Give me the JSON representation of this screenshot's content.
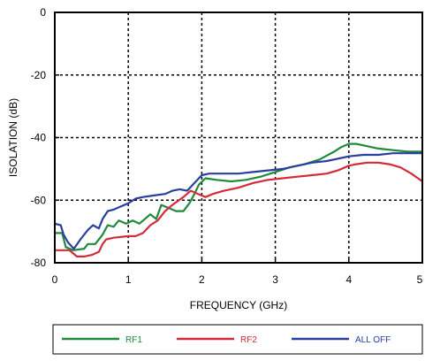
{
  "chart_data": {
    "type": "line",
    "title": "",
    "xlabel": "FREQUENCY (GHz)",
    "ylabel": "ISOLATION (dB)",
    "xlim": [
      0,
      5
    ],
    "ylim": [
      -80,
      0
    ],
    "x_ticks": [
      0,
      1,
      2,
      3,
      4,
      5
    ],
    "x_tick_labels": [
      "0",
      "1",
      "2",
      "3",
      "4",
      "5"
    ],
    "y_ticks": [
      0,
      -20,
      -40,
      -60,
      -80
    ],
    "y_tick_labels": [
      "0",
      "-20",
      "-40",
      "-60",
      "-80"
    ],
    "grid": "dashed",
    "legend_position": "bottom",
    "series": [
      {
        "name": "RF1",
        "color": "#1f8a3a",
        "points": [
          [
            0,
            -70.5
          ],
          [
            0.1,
            -70.5
          ],
          [
            0.15,
            -75
          ],
          [
            0.25,
            -76
          ],
          [
            0.4,
            -75.5
          ],
          [
            0.45,
            -74
          ],
          [
            0.55,
            -74
          ],
          [
            0.65,
            -71
          ],
          [
            0.72,
            -68
          ],
          [
            0.8,
            -68.5
          ],
          [
            0.87,
            -66.5
          ],
          [
            0.97,
            -67.5
          ],
          [
            1.06,
            -66.5
          ],
          [
            1.15,
            -67.5
          ],
          [
            1.3,
            -64.5
          ],
          [
            1.38,
            -66
          ],
          [
            1.45,
            -61.5
          ],
          [
            1.55,
            -62.5
          ],
          [
            1.65,
            -63.5
          ],
          [
            1.75,
            -63.5
          ],
          [
            1.83,
            -61
          ],
          [
            1.9,
            -58
          ],
          [
            1.96,
            -55
          ],
          [
            2.05,
            -53
          ],
          [
            2.2,
            -53.5
          ],
          [
            2.4,
            -54
          ],
          [
            2.6,
            -53.5
          ],
          [
            2.8,
            -52.5
          ],
          [
            3.0,
            -51
          ],
          [
            3.2,
            -49.5
          ],
          [
            3.4,
            -48.5
          ],
          [
            3.6,
            -47
          ],
          [
            3.8,
            -44.5
          ],
          [
            3.9,
            -43
          ],
          [
            4.0,
            -42
          ],
          [
            4.1,
            -42
          ],
          [
            4.2,
            -42.5
          ],
          [
            4.4,
            -43.5
          ],
          [
            4.6,
            -44
          ],
          [
            4.8,
            -44.5
          ],
          [
            5.0,
            -44.5
          ]
        ]
      },
      {
        "name": "RF2",
        "color": "#d42b3a",
        "points": [
          [
            0,
            -76
          ],
          [
            0.2,
            -76
          ],
          [
            0.3,
            -78
          ],
          [
            0.4,
            -78
          ],
          [
            0.5,
            -77.5
          ],
          [
            0.6,
            -76.5
          ],
          [
            0.65,
            -74
          ],
          [
            0.7,
            -72.5
          ],
          [
            0.8,
            -72
          ],
          [
            1.0,
            -71.5
          ],
          [
            1.1,
            -71.5
          ],
          [
            1.2,
            -70.5
          ],
          [
            1.3,
            -68
          ],
          [
            1.4,
            -66.5
          ],
          [
            1.5,
            -63.5
          ],
          [
            1.6,
            -61.5
          ],
          [
            1.75,
            -59
          ],
          [
            1.85,
            -57
          ],
          [
            1.95,
            -58
          ],
          [
            2.05,
            -59
          ],
          [
            2.15,
            -58
          ],
          [
            2.3,
            -57
          ],
          [
            2.5,
            -56
          ],
          [
            2.7,
            -54.5
          ],
          [
            2.9,
            -53.5
          ],
          [
            3.1,
            -53
          ],
          [
            3.3,
            -52.5
          ],
          [
            3.5,
            -52
          ],
          [
            3.7,
            -51.5
          ],
          [
            3.85,
            -50.5
          ],
          [
            4.0,
            -49
          ],
          [
            4.1,
            -48.5
          ],
          [
            4.25,
            -48
          ],
          [
            4.4,
            -48
          ],
          [
            4.55,
            -48.5
          ],
          [
            4.7,
            -49.5
          ],
          [
            4.85,
            -51.5
          ],
          [
            5.0,
            -54
          ]
        ]
      },
      {
        "name": "ALL OFF",
        "color": "#2a3ea0",
        "points": [
          [
            0,
            -67.5
          ],
          [
            0.08,
            -68
          ],
          [
            0.12,
            -71
          ],
          [
            0.18,
            -73.5
          ],
          [
            0.26,
            -75.5
          ],
          [
            0.35,
            -72.5
          ],
          [
            0.45,
            -69.5
          ],
          [
            0.52,
            -68
          ],
          [
            0.6,
            -69
          ],
          [
            0.65,
            -66
          ],
          [
            0.72,
            -63.5
          ],
          [
            0.8,
            -63
          ],
          [
            0.9,
            -62
          ],
          [
            1.0,
            -61
          ],
          [
            1.1,
            -59.5
          ],
          [
            1.2,
            -59
          ],
          [
            1.35,
            -58.5
          ],
          [
            1.5,
            -58
          ],
          [
            1.6,
            -57
          ],
          [
            1.7,
            -56.5
          ],
          [
            1.8,
            -57
          ],
          [
            1.9,
            -54.5
          ],
          [
            2.0,
            -52
          ],
          [
            2.1,
            -51.5
          ],
          [
            2.3,
            -51.5
          ],
          [
            2.5,
            -51.5
          ],
          [
            2.7,
            -51
          ],
          [
            2.9,
            -50.5
          ],
          [
            3.1,
            -50
          ],
          [
            3.3,
            -49
          ],
          [
            3.5,
            -48
          ],
          [
            3.7,
            -47.5
          ],
          [
            3.9,
            -46.5
          ],
          [
            4.0,
            -46
          ],
          [
            4.2,
            -45.5
          ],
          [
            4.4,
            -45.5
          ],
          [
            4.6,
            -45
          ],
          [
            4.8,
            -45
          ],
          [
            5.0,
            -45
          ]
        ]
      }
    ]
  }
}
